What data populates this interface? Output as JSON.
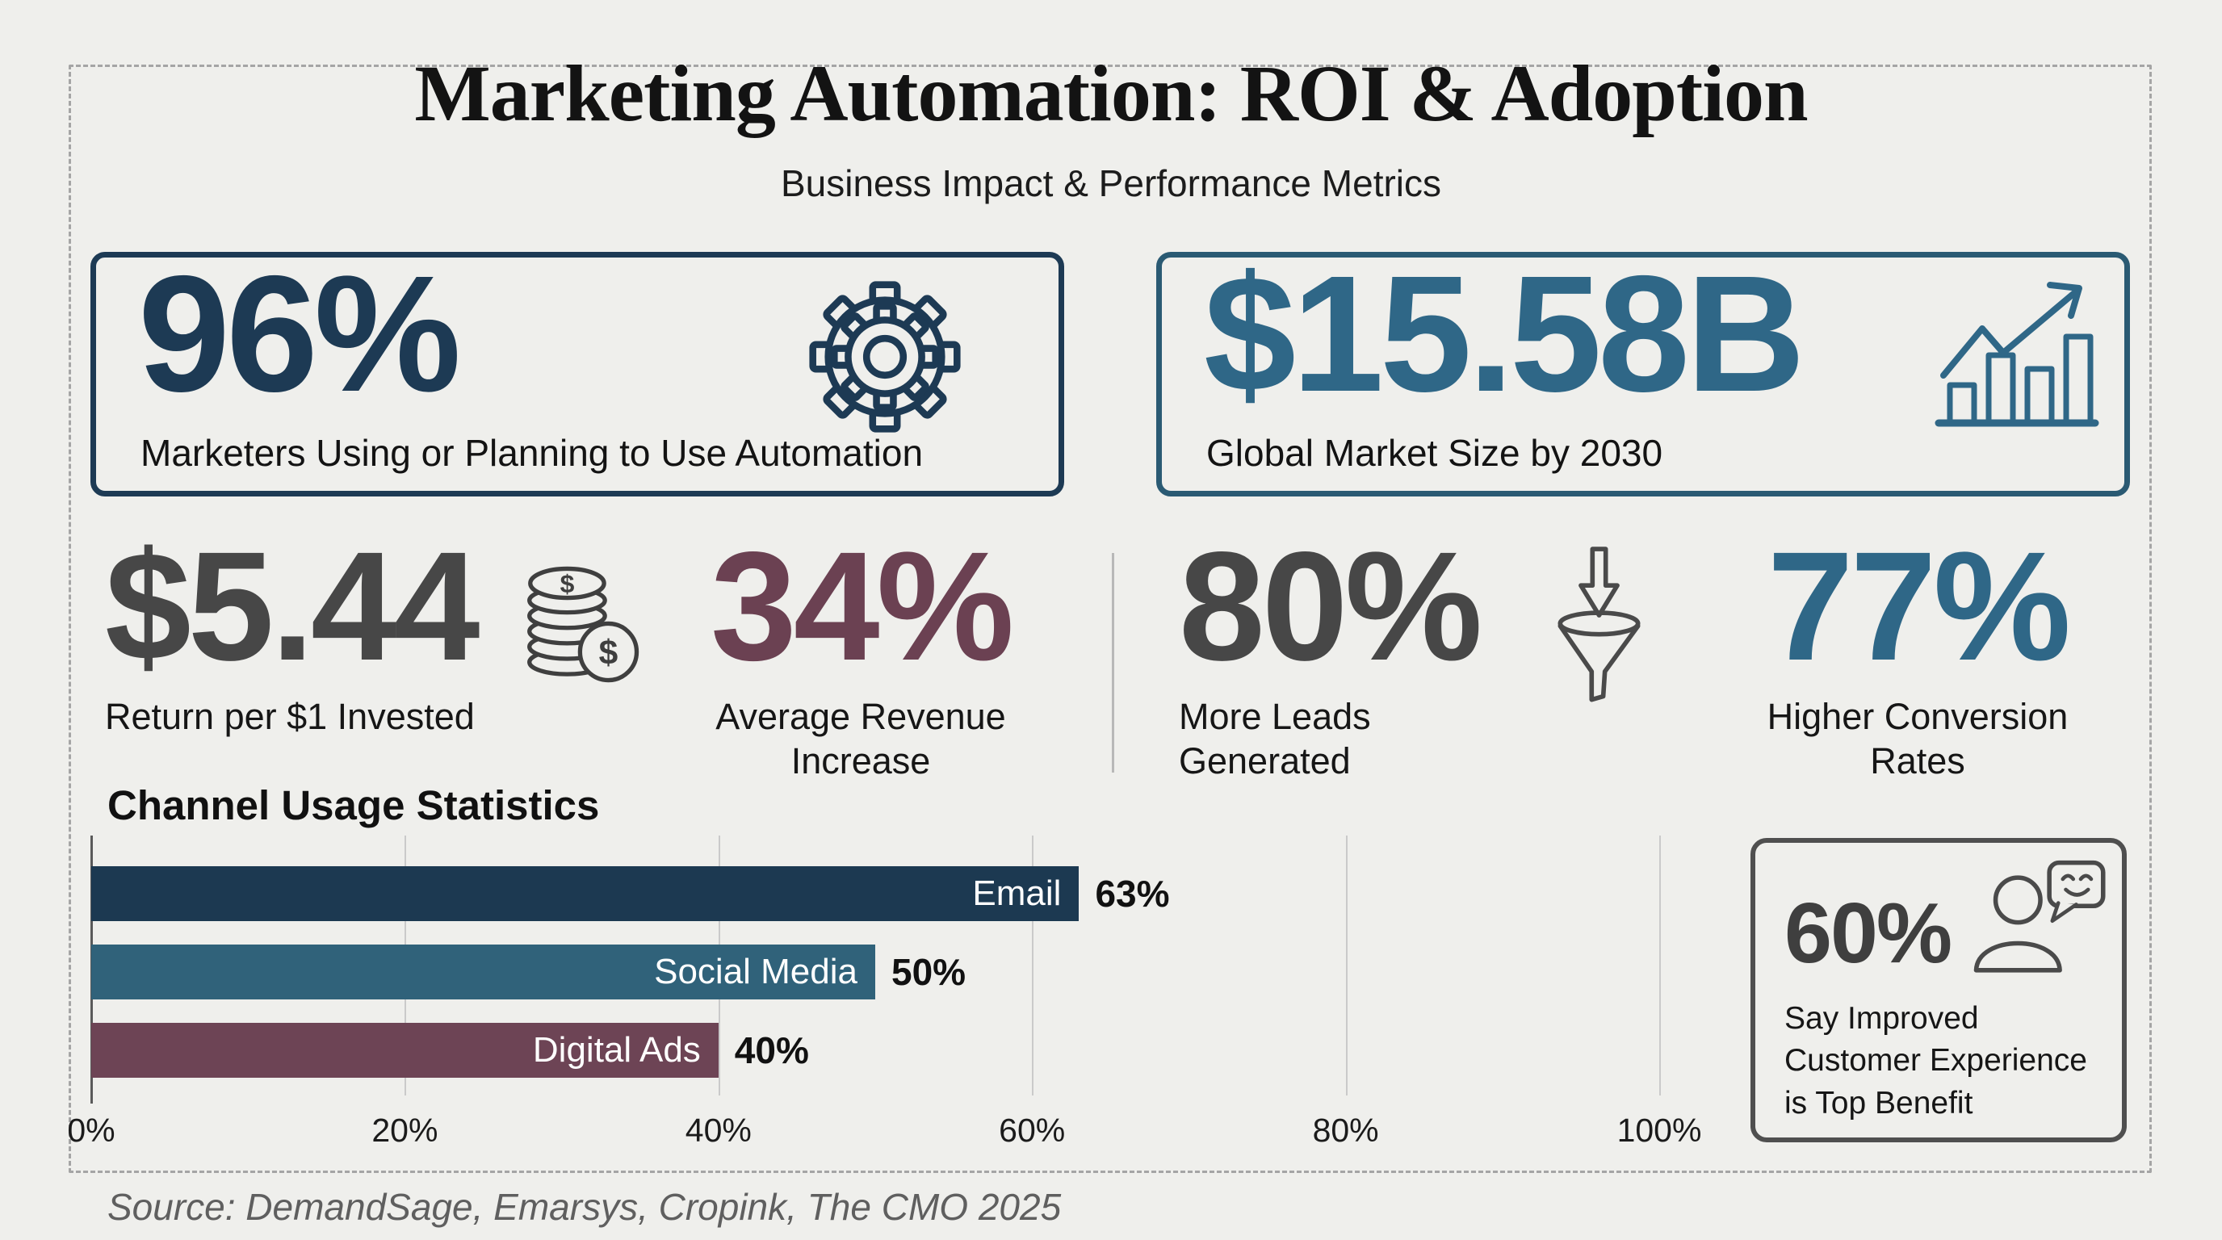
{
  "header": {
    "title": "Marketing Automation: ROI & Adoption",
    "subtitle": "Business Impact & Performance Metrics"
  },
  "hero_cards": [
    {
      "value": "96%",
      "label": "Marketers Using or Planning to Use Automation",
      "icon": "gear-icon",
      "accent": "#1d3a54"
    },
    {
      "value": "$15.58B",
      "label": "Global Market Size by 2030",
      "icon": "growth-chart-icon",
      "accent": "#2f6787"
    }
  ],
  "mid_stats": [
    {
      "value": "$5.44",
      "label": "Return per $1 Invested",
      "accent": "#474747",
      "icon": "coins-icon"
    },
    {
      "value": "34%",
      "label": "Average Revenue Increase",
      "accent": "#6b4152"
    },
    {
      "value": "80%",
      "label": "More Leads Generated",
      "accent": "#474747",
      "icon": "funnel-icon"
    },
    {
      "value": "77%",
      "label": "Higher Conversion Rates",
      "accent": "#2f6787"
    }
  ],
  "benefit_card": {
    "value": "60%",
    "label": "Say Improved Customer Experience is Top Benefit",
    "accent": "#3f3f3f",
    "icon": "customer-feedback-icon"
  },
  "source": "Source: DemandSage, Emarsys, Cropink, The CMO 2025",
  "chart_data": {
    "type": "bar",
    "orientation": "horizontal",
    "title": "Channel Usage Statistics",
    "categories": [
      "Email",
      "Social Media",
      "Digital Ads"
    ],
    "values": [
      63,
      50,
      40
    ],
    "value_labels": [
      "63%",
      "50%",
      "40%"
    ],
    "bar_colors": [
      "#1c3951",
      "#30627a",
      "#6d4455"
    ],
    "x_ticks": [
      "0%",
      "20%",
      "40%",
      "60%",
      "80%",
      "100%"
    ],
    "xlim": [
      0,
      100
    ],
    "grid": true,
    "legend": false,
    "xlabel": "",
    "ylabel": ""
  },
  "colors": {
    "background": "#efefec",
    "frame_dashed": "#a5a5a5",
    "navy": "#1d3a54",
    "teal": "#2f6787",
    "dark_gray": "#474747",
    "plum": "#6b4152",
    "gridline": "#cacaca",
    "divider": "#b8b8b8",
    "bar_email": "#1c3951",
    "bar_social": "#30627a",
    "bar_digital": "#6d4455",
    "benefit_border": "#4f4f4f",
    "source_text": "#5f5f5f"
  }
}
